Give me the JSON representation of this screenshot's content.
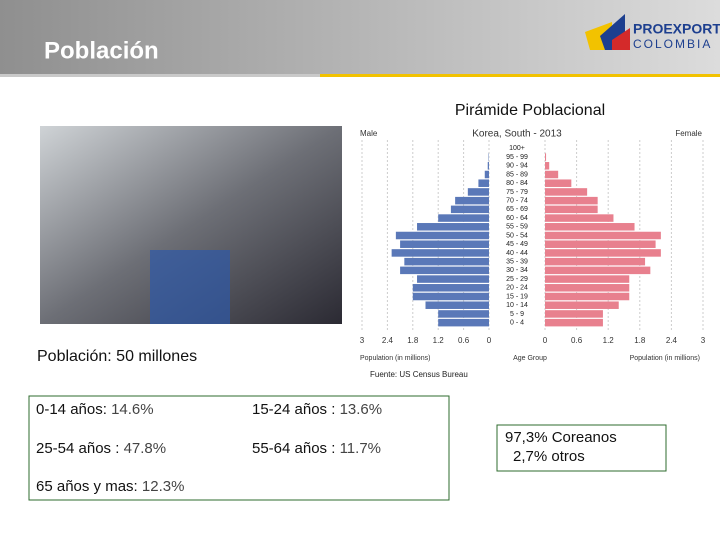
{
  "header": {
    "title": "Población",
    "logo": {
      "name": "PROEXPORT",
      "country": "COLOMBIA"
    }
  },
  "pyramid_heading": "Pirámide Poblacional",
  "population_note": "Población: 50 millones",
  "source": "Fuente: US Census Bureau",
  "stats": [
    {
      "label": "0-14 años:",
      "value": "14.6%"
    },
    {
      "label": "15-24 años :",
      "value": "13.6%"
    },
    {
      "label": "25-54 años :",
      "value": "47.8%"
    },
    {
      "label": "55-64 años :",
      "value": "11.7%"
    },
    {
      "label": "65 años y mas:",
      "value": "12.3%"
    }
  ],
  "ethnicity": [
    "97,3% Coreanos",
    "2,7% otros"
  ],
  "chart_data": {
    "type": "pyramid",
    "title": "Korea, South - 2013",
    "left_label": "Male",
    "right_label": "Female",
    "xlabel_left": "Population (in millions)",
    "xlabel_center": "Age Group",
    "xlabel_right": "Population (in millions)",
    "categories": [
      "0 - 4",
      "5 - 9",
      "10 - 14",
      "15 - 19",
      "20 - 24",
      "25 - 29",
      "30 - 34",
      "35 - 39",
      "40 - 44",
      "45 - 49",
      "50 - 54",
      "55 - 59",
      "60 - 64",
      "65 - 69",
      "70 - 74",
      "75 - 79",
      "80 - 84",
      "85 - 89",
      "90 - 94",
      "95 - 99",
      "100+"
    ],
    "series": [
      {
        "name": "Male",
        "color": "#5a78b8",
        "values": [
          1.2,
          1.2,
          1.5,
          1.8,
          1.8,
          1.7,
          2.1,
          2.0,
          2.3,
          2.1,
          2.2,
          1.7,
          1.2,
          0.9,
          0.8,
          0.5,
          0.25,
          0.1,
          0.03,
          0.01,
          0
        ]
      },
      {
        "name": "Female",
        "color": "#e8808e",
        "values": [
          1.1,
          1.1,
          1.4,
          1.6,
          1.6,
          1.6,
          2.0,
          1.9,
          2.2,
          2.1,
          2.2,
          1.7,
          1.3,
          1.0,
          1.0,
          0.8,
          0.5,
          0.25,
          0.08,
          0.02,
          0
        ]
      }
    ],
    "xlim": [
      0,
      3
    ],
    "xticks": [
      0,
      0.6,
      1.2,
      1.8,
      2.4,
      3
    ],
    "grid": true
  }
}
